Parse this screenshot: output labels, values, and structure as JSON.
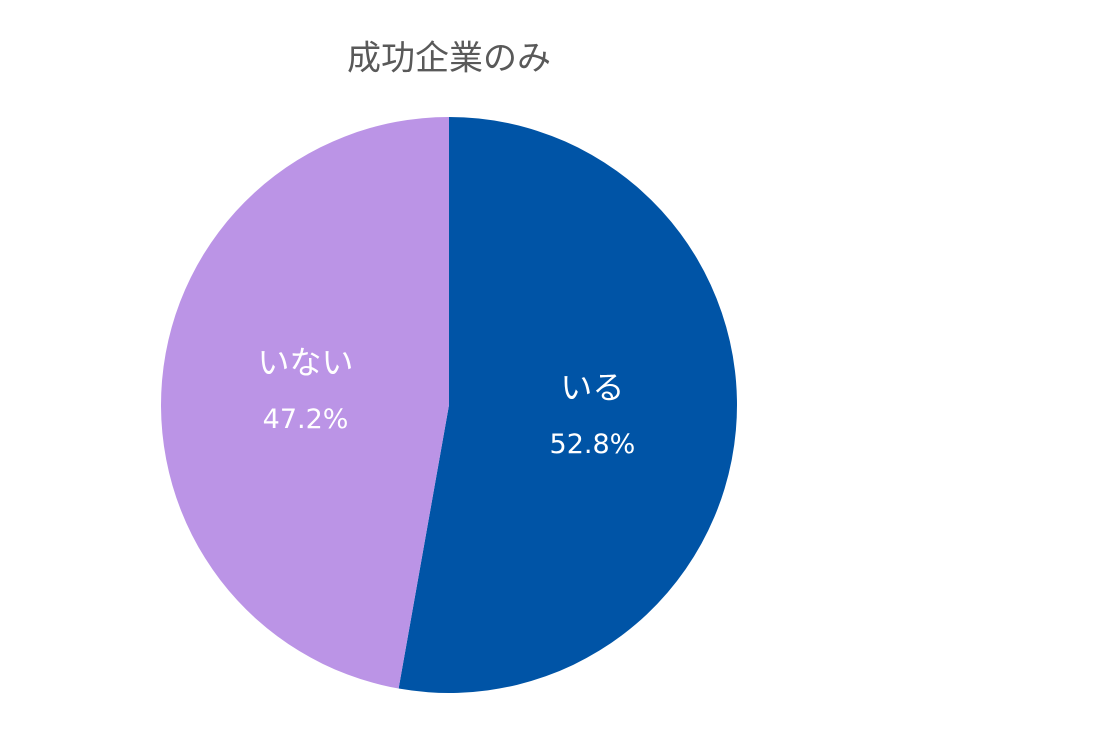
{
  "chart_data": {
    "type": "pie",
    "title": "成功企業のみ",
    "categories": [
      "いる",
      "いない"
    ],
    "values": [
      52.8,
      47.2
    ],
    "value_labels": [
      "52.8%",
      "47.2%"
    ],
    "colors": [
      "#0054a6",
      "#bb94e6"
    ]
  }
}
